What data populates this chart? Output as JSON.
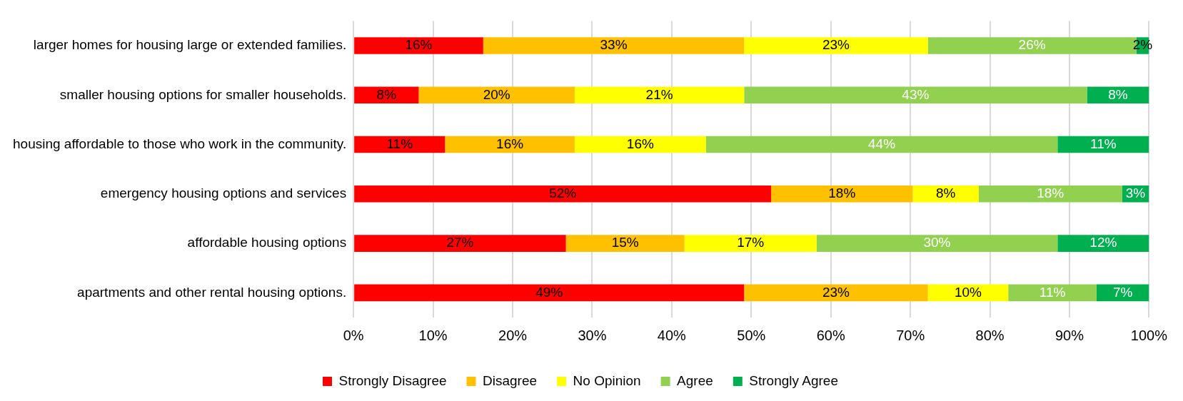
{
  "chart_data": {
    "type": "bar",
    "orientation": "horizontal",
    "stacked": true,
    "categories": [
      "larger homes for housing large or extended families.",
      "smaller housing options for smaller households.",
      "housing affordable to those who work in the community.",
      "emergency housing options and services",
      "affordable housing options",
      "apartments and other rental housing options."
    ],
    "series": [
      {
        "name": "Strongly Disagree",
        "color": "#ff0000",
        "values": [
          16.3,
          8.2,
          11.5,
          52.5,
          26.7,
          49.1
        ],
        "value_labels": [
          "16%",
          "8%",
          "11%",
          "52%",
          "27%",
          "49%"
        ]
      },
      {
        "name": "Disagree",
        "color": "#ffc000",
        "values": [
          32.8,
          19.6,
          16.3,
          17.8,
          14.9,
          23.1
        ],
        "value_labels": [
          "33%",
          "20%",
          "16%",
          "18%",
          "15%",
          "23%"
        ]
      },
      {
        "name": "No Opinion",
        "color": "#ffff00",
        "values": [
          23.1,
          21.3,
          16.5,
          8.3,
          16.6,
          10.1
        ],
        "value_labels": [
          "23%",
          "21%",
          "16%",
          "8%",
          "17%",
          "10%"
        ]
      },
      {
        "name": "Agree",
        "color": "#92d050",
        "values": [
          26.2,
          43.1,
          44.2,
          18.0,
          30.3,
          11.1
        ],
        "value_labels": [
          "26%",
          "43%",
          "44%",
          "18%",
          "30%",
          "11%"
        ]
      },
      {
        "name": "Strongly Agree",
        "color": "#00b050",
        "values": [
          1.6,
          7.8,
          11.5,
          3.4,
          11.5,
          6.6
        ],
        "value_labels": [
          "2%",
          "8%",
          "11%",
          "3%",
          "12%",
          "7%"
        ]
      }
    ],
    "xlim": [
      0,
      100
    ],
    "xticks": [
      {
        "value": 0,
        "label": "0%"
      },
      {
        "value": 10,
        "label": "10%"
      },
      {
        "value": 20,
        "label": "20%"
      },
      {
        "value": 30,
        "label": "30%"
      },
      {
        "value": 40,
        "label": "40%"
      },
      {
        "value": 50,
        "label": "50%"
      },
      {
        "value": 60,
        "label": "60%"
      },
      {
        "value": 70,
        "label": "70%"
      },
      {
        "value": 80,
        "label": "80%"
      },
      {
        "value": 90,
        "label": "90%"
      },
      {
        "value": 100,
        "label": "100%"
      }
    ],
    "grid": "x",
    "legend": "bottom"
  }
}
